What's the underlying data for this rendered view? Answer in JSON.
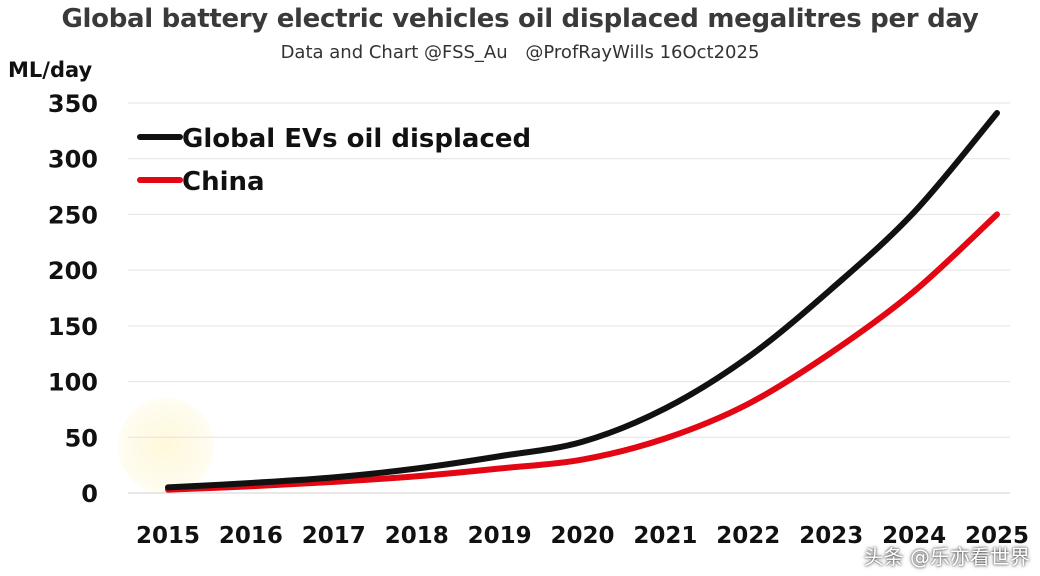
{
  "chart_data": {
    "type": "line",
    "title": "Global battery electric vehicles oil displaced megalitres per day",
    "subtitle_parts": [
      "Data and Chart @FSS_Au",
      "@ProfRayWills 16Oct2025"
    ],
    "ylabel": "ML/day",
    "xlabel": "",
    "categories": [
      "2015",
      "2016",
      "2017",
      "2018",
      "2019",
      "2020",
      "2021",
      "2022",
      "2023",
      "2024",
      "2025"
    ],
    "ylim": [
      0,
      350
    ],
    "yticks": [
      0,
      50,
      100,
      150,
      200,
      250,
      300,
      350
    ],
    "grid": true,
    "legend_position": "top-left",
    "series": [
      {
        "name": "Global EVs oil displaced",
        "color": "#111111",
        "values": [
          5,
          9,
          14,
          22,
          33,
          46,
          76,
          122,
          183,
          252,
          341
        ]
      },
      {
        "name": "China",
        "color": "#e30613",
        "values": [
          3,
          6,
          10,
          15,
          22,
          30,
          49,
          80,
          126,
          181,
          250
        ]
      }
    ]
  },
  "watermark": "头条 @乐亦看世界"
}
